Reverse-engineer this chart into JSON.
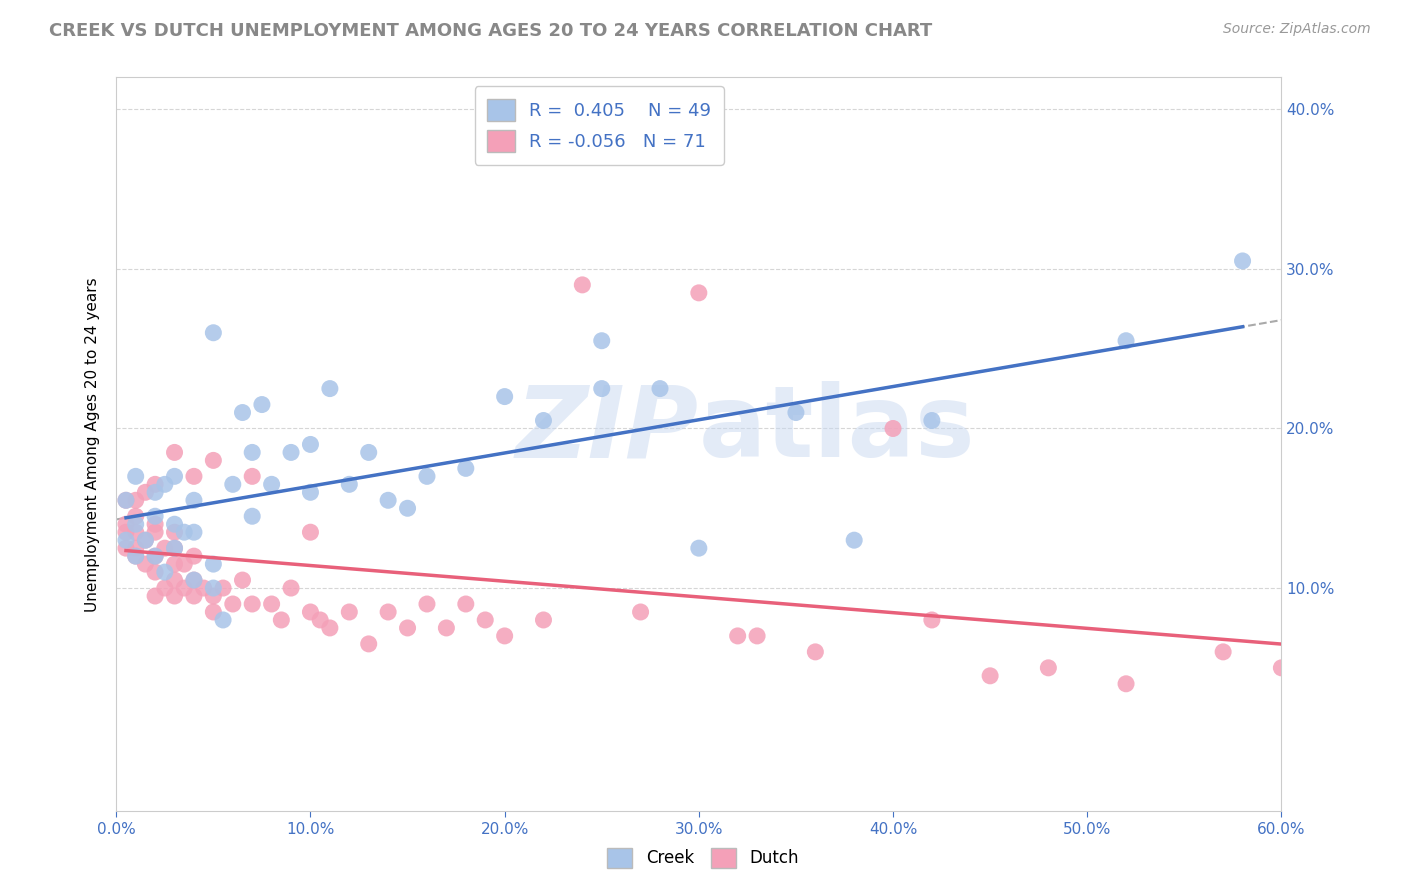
{
  "title": "CREEK VS DUTCH UNEMPLOYMENT AMONG AGES 20 TO 24 YEARS CORRELATION CHART",
  "source_text": "Source: ZipAtlas.com",
  "ylabel": "Unemployment Among Ages 20 to 24 years",
  "xlabel": "",
  "xlim": [
    0.0,
    0.6
  ],
  "ylim": [
    -0.04,
    0.42
  ],
  "xticks": [
    0.0,
    0.1,
    0.2,
    0.3,
    0.4,
    0.5,
    0.6
  ],
  "yticks": [
    0.1,
    0.2,
    0.3,
    0.4
  ],
  "creek_color": "#a8c4e8",
  "dutch_color": "#f4a0b8",
  "creek_line_color": "#4472c4",
  "dutch_line_color": "#e8607a",
  "creek_dash_color": "#aaaaaa",
  "creek_R": 0.405,
  "creek_N": 49,
  "dutch_R": -0.056,
  "dutch_N": 71,
  "legend_R_color": "#4472c4",
  "watermark": "ZIPatlas",
  "creek_x": [
    0.005,
    0.005,
    0.01,
    0.01,
    0.01,
    0.015,
    0.02,
    0.02,
    0.02,
    0.025,
    0.025,
    0.03,
    0.03,
    0.03,
    0.035,
    0.04,
    0.04,
    0.04,
    0.05,
    0.05,
    0.05,
    0.055,
    0.06,
    0.065,
    0.07,
    0.07,
    0.075,
    0.08,
    0.09,
    0.1,
    0.1,
    0.11,
    0.12,
    0.13,
    0.14,
    0.15,
    0.16,
    0.18,
    0.2,
    0.22,
    0.25,
    0.25,
    0.28,
    0.3,
    0.35,
    0.38,
    0.42,
    0.52,
    0.58
  ],
  "creek_y": [
    0.13,
    0.155,
    0.12,
    0.14,
    0.17,
    0.13,
    0.12,
    0.145,
    0.16,
    0.11,
    0.165,
    0.125,
    0.14,
    0.17,
    0.135,
    0.105,
    0.135,
    0.155,
    0.1,
    0.115,
    0.26,
    0.08,
    0.165,
    0.21,
    0.145,
    0.185,
    0.215,
    0.165,
    0.185,
    0.16,
    0.19,
    0.225,
    0.165,
    0.185,
    0.155,
    0.15,
    0.17,
    0.175,
    0.22,
    0.205,
    0.225,
    0.255,
    0.225,
    0.125,
    0.21,
    0.13,
    0.205,
    0.255,
    0.305
  ],
  "dutch_x": [
    0.005,
    0.005,
    0.005,
    0.005,
    0.01,
    0.01,
    0.01,
    0.01,
    0.01,
    0.015,
    0.015,
    0.015,
    0.02,
    0.02,
    0.02,
    0.02,
    0.02,
    0.02,
    0.025,
    0.025,
    0.03,
    0.03,
    0.03,
    0.03,
    0.03,
    0.03,
    0.035,
    0.035,
    0.04,
    0.04,
    0.04,
    0.04,
    0.045,
    0.05,
    0.05,
    0.05,
    0.055,
    0.06,
    0.065,
    0.07,
    0.07,
    0.08,
    0.085,
    0.09,
    0.1,
    0.1,
    0.105,
    0.11,
    0.12,
    0.13,
    0.14,
    0.15,
    0.16,
    0.17,
    0.18,
    0.19,
    0.2,
    0.22,
    0.24,
    0.27,
    0.3,
    0.32,
    0.33,
    0.36,
    0.4,
    0.42,
    0.45,
    0.48,
    0.52,
    0.57,
    0.6
  ],
  "dutch_y": [
    0.125,
    0.135,
    0.14,
    0.155,
    0.12,
    0.125,
    0.135,
    0.145,
    0.155,
    0.115,
    0.13,
    0.16,
    0.095,
    0.11,
    0.12,
    0.135,
    0.14,
    0.165,
    0.1,
    0.125,
    0.095,
    0.105,
    0.115,
    0.125,
    0.135,
    0.185,
    0.1,
    0.115,
    0.095,
    0.105,
    0.12,
    0.17,
    0.1,
    0.085,
    0.095,
    0.18,
    0.1,
    0.09,
    0.105,
    0.09,
    0.17,
    0.09,
    0.08,
    0.1,
    0.085,
    0.135,
    0.08,
    0.075,
    0.085,
    0.065,
    0.085,
    0.075,
    0.09,
    0.075,
    0.09,
    0.08,
    0.07,
    0.08,
    0.29,
    0.085,
    0.285,
    0.07,
    0.07,
    0.06,
    0.2,
    0.08,
    0.045,
    0.05,
    0.04,
    0.06,
    0.05
  ],
  "background_color": "#ffffff",
  "grid_color": "#cccccc",
  "title_fontsize": 13,
  "axis_label_fontsize": 11,
  "tick_fontsize": 11,
  "legend_fontsize": 13
}
